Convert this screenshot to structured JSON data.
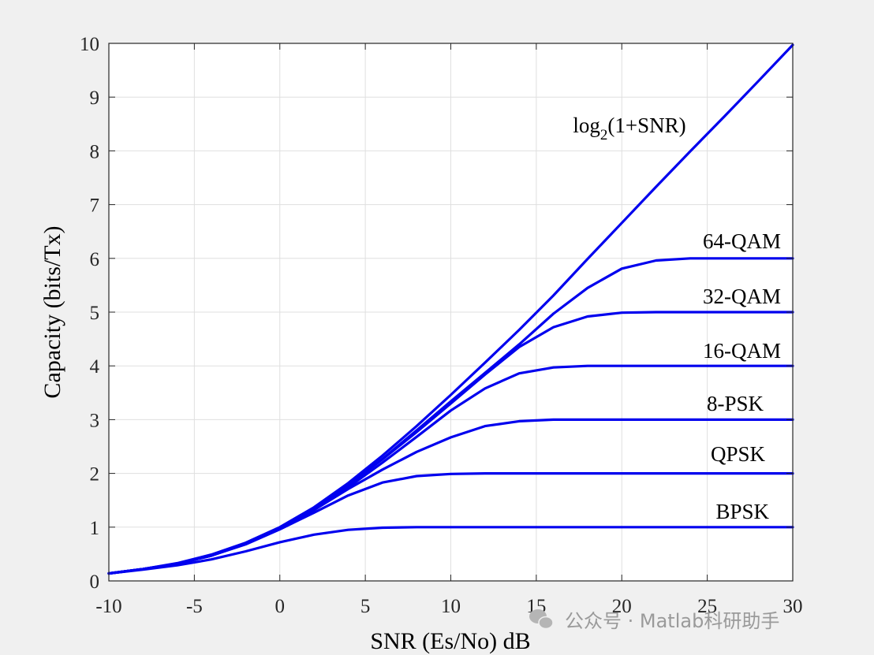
{
  "chart_data": {
    "type": "line",
    "title": "",
    "xlabel": "SNR (Es/No) dB",
    "ylabel": "Capacity (bits/Tx)",
    "xlim": [
      -10,
      30
    ],
    "ylim": [
      0,
      10
    ],
    "grid": true,
    "line_color": "#0000ee",
    "xticks": [
      -10,
      -5,
      0,
      5,
      10,
      15,
      20,
      25,
      30
    ],
    "yticks": [
      0,
      1,
      2,
      3,
      4,
      5,
      6,
      7,
      8,
      9,
      10
    ],
    "x": [
      -10,
      -8,
      -6,
      -4,
      -2,
      0,
      2,
      4,
      6,
      8,
      10,
      12,
      14,
      16,
      18,
      20,
      22,
      24,
      26,
      28,
      30
    ],
    "series": [
      {
        "name": "log2(1+SNR)",
        "label_parts": [
          "log",
          "2",
          "(1+SNR)"
        ],
        "values": [
          0.14,
          0.22,
          0.33,
          0.49,
          0.71,
          1.0,
          1.37,
          1.82,
          2.33,
          2.88,
          3.46,
          4.06,
          4.67,
          5.31,
          5.99,
          6.66,
          7.33,
          7.99,
          8.64,
          9.3,
          9.97
        ]
      },
      {
        "name": "64-QAM",
        "values": [
          0.14,
          0.22,
          0.32,
          0.47,
          0.69,
          0.98,
          1.35,
          1.78,
          2.27,
          2.8,
          3.34,
          3.87,
          4.4,
          4.97,
          5.45,
          5.81,
          5.96,
          6.0,
          6.0,
          6.0,
          6.0
        ]
      },
      {
        "name": "32-QAM",
        "values": [
          0.14,
          0.22,
          0.32,
          0.47,
          0.69,
          0.98,
          1.35,
          1.78,
          2.26,
          2.77,
          3.3,
          3.84,
          4.35,
          4.72,
          4.92,
          4.99,
          5.0,
          5.0,
          5.0,
          5.0,
          5.0
        ]
      },
      {
        "name": "16-QAM",
        "values": [
          0.14,
          0.22,
          0.32,
          0.47,
          0.69,
          0.97,
          1.32,
          1.74,
          2.2,
          2.68,
          3.17,
          3.58,
          3.86,
          3.97,
          4.0,
          4.0,
          4.0,
          4.0,
          4.0,
          4.0,
          4.0
        ]
      },
      {
        "name": "8-PSK",
        "values": [
          0.14,
          0.22,
          0.32,
          0.47,
          0.69,
          0.97,
          1.32,
          1.71,
          2.07,
          2.4,
          2.67,
          2.88,
          2.97,
          3.0,
          3.0,
          3.0,
          3.0,
          3.0,
          3.0,
          3.0,
          3.0
        ]
      },
      {
        "name": "QPSK",
        "values": [
          0.14,
          0.22,
          0.32,
          0.47,
          0.68,
          0.96,
          1.27,
          1.59,
          1.83,
          1.95,
          1.99,
          2.0,
          2.0,
          2.0,
          2.0,
          2.0,
          2.0,
          2.0,
          2.0,
          2.0,
          2.0
        ]
      },
      {
        "name": "BPSK",
        "values": [
          0.14,
          0.21,
          0.29,
          0.4,
          0.55,
          0.72,
          0.86,
          0.95,
          0.99,
          1.0,
          1.0,
          1.0,
          1.0,
          1.0,
          1.0,
          1.0,
          1.0,
          1.0,
          1.0,
          1.0,
          1.0
        ]
      }
    ]
  },
  "watermark": "公众号 · Matlab科研助手"
}
